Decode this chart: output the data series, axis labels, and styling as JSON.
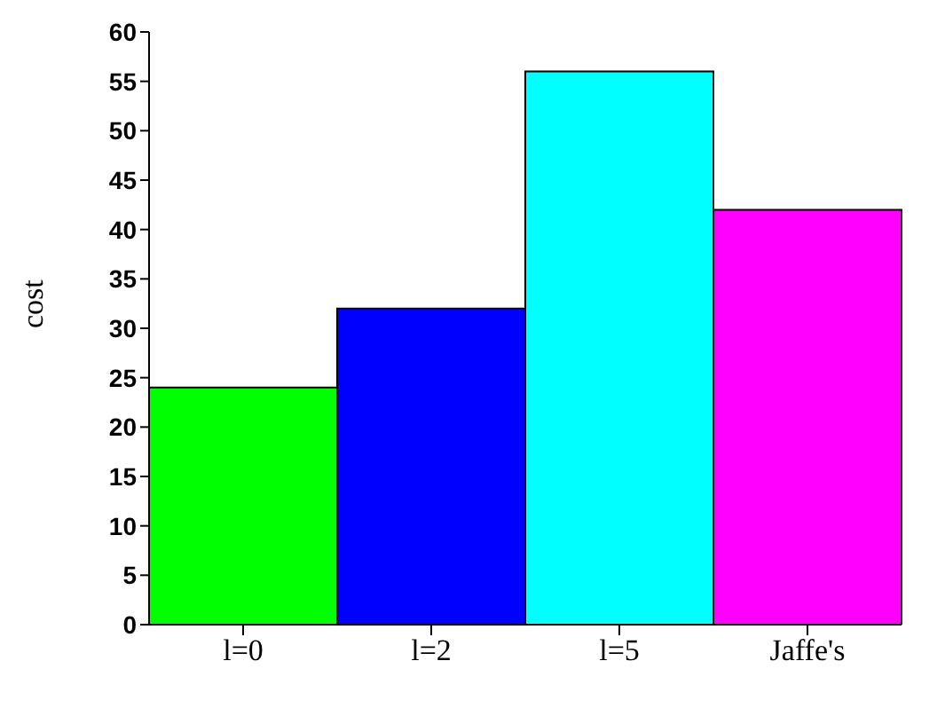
{
  "chart_data": {
    "type": "bar",
    "ylabel": "cost",
    "categories": [
      "l=0",
      "l=2",
      "l=5",
      "Jaffe's"
    ],
    "values": [
      24,
      32,
      56,
      42
    ],
    "colors": [
      "#00ff00",
      "#0000ff",
      "#00ffff",
      "#ff00ff"
    ],
    "ylim": [
      0,
      60
    ],
    "yticks": [
      0,
      5,
      10,
      15,
      20,
      25,
      30,
      35,
      40,
      45,
      50,
      55,
      60
    ],
    "grid": false,
    "legend": false
  }
}
